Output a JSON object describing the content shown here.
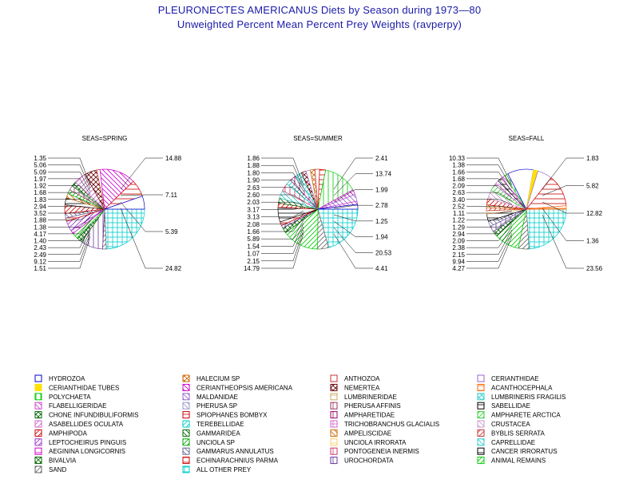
{
  "header": {
    "title_line1": "PLEURONECTES AMERICANUS Diets by Season during 1973—80",
    "title_line2": "Unweighted Percent Mean Percent Prey  Weights (ravperpy)"
  },
  "chart_data": [
    {
      "type": "pie",
      "title": "SEAS=SPRING",
      "slices": [
        {
          "category": "ALL OTHER PREY",
          "value": 24.82
        },
        {
          "category": "SAND",
          "value": 1.51
        },
        {
          "category": "UROCHORDATA",
          "value": 9.12
        },
        {
          "category": "BIVALVIA",
          "value": 2.49
        },
        {
          "category": "ANIMAL REMAINS",
          "value": 2.43
        },
        {
          "category": "AEGININA LONGICORNIS",
          "value": 1.4
        },
        {
          "category": "LEPTOCHEIRUS PINGUIS",
          "value": 4.17
        },
        {
          "category": "ECHINARACHNIUS PARMA",
          "value": 1.38
        },
        {
          "category": "GAMMARUS ANNULATUS",
          "value": 1.88
        },
        {
          "category": "AMPHIPODA",
          "value": 3.52
        },
        {
          "category": "CANCER IRRORATUS",
          "value": 2.94
        },
        {
          "category": "AMPELISCIDAE",
          "value": 1.83
        },
        {
          "category": "UNCIOLA SP",
          "value": 1.68
        },
        {
          "category": "PHERUSA AFFINIS",
          "value": 1.92
        },
        {
          "category": "CHONE INFUNDIBULIFORMIS",
          "value": 1.97
        },
        {
          "category": "ASABELLIDES OCULATA",
          "value": 5.09
        },
        {
          "category": "NEMERTEA",
          "value": 5.06
        },
        {
          "category": "ANTHOZOA",
          "value": 1.35
        },
        {
          "category": "CERIANTHEOPSIS AMERICANA",
          "value": 14.88
        },
        {
          "category": "SPIOPHANES BOMBYX",
          "value": 7.11
        },
        {
          "category": "HYDROZOA",
          "value": 5.39
        }
      ],
      "labels_left": [
        "1.35",
        "5.06",
        "5.09",
        "1.97",
        "1.92",
        "1.68",
        "1.83",
        "2.94",
        "3.52",
        "1.88",
        "1.38",
        "4.17",
        "1.40",
        "2.43",
        "2.49",
        "9.12",
        "1.51"
      ],
      "labels_right": [
        "14.88",
        "7.11",
        "5.39",
        "24.82"
      ]
    },
    {
      "type": "pie",
      "title": "SEAS=SUMMER",
      "slices": [
        {
          "category": "ALL OTHER PREY",
          "value": 20.53
        },
        {
          "category": "SAND",
          "value": 4.41
        },
        {
          "category": "ANIMAL REMAINS",
          "value": 14.79
        },
        {
          "category": "BIVALVIA",
          "value": 2.15
        },
        {
          "category": "UROCHORDATA",
          "value": 1.07
        },
        {
          "category": "ECHINARACHNIUS PARMA",
          "value": 1.54
        },
        {
          "category": "CANCER IRRORATUS",
          "value": 5.89
        },
        {
          "category": "AMPHIPODA",
          "value": 1.66
        },
        {
          "category": "GAMMARIDEA",
          "value": 2.08
        },
        {
          "category": "CAPRELLIDAE",
          "value": 3.13
        },
        {
          "category": "PONTOGENEIA INERMIS",
          "value": 3.17
        },
        {
          "category": "TEREBELLIDAE",
          "value": 2.03
        },
        {
          "category": "AMPHARETIDAE",
          "value": 2.6
        },
        {
          "category": "LUMBRINERIS FRAGILIS",
          "value": 2.63
        },
        {
          "category": "NEMERTEA",
          "value": 1.9
        },
        {
          "category": "CERIANTHIDAE",
          "value": 1.8
        },
        {
          "category": "HALECIUM SP",
          "value": 1.88
        },
        {
          "category": "ANTHOZOA",
          "value": 1.86
        },
        {
          "category": "SPIOPHANES BOMBYX",
          "value": 2.41
        },
        {
          "category": "POLYCHAETA",
          "value": 13.74
        },
        {
          "category": "CERIANTHEOPSIS AMERICANA",
          "value": 1.99
        },
        {
          "category": "MALDANIDAE",
          "value": 2.78
        },
        {
          "category": "FLABELLIGERIDAE",
          "value": 1.25
        },
        {
          "category": "HYDROZOA",
          "value": 1.94
        }
      ],
      "labels_left": [
        "1.86",
        "1.88",
        "1.80",
        "1.90",
        "2.63",
        "2.60",
        "2.03",
        "3.17",
        "3.13",
        "2.08",
        "1.66",
        "5.89",
        "1.54",
        "1.07",
        "2.15",
        "14.79"
      ],
      "labels_right": [
        "2.41",
        "13.74",
        "1.99",
        "2.78",
        "1.25",
        "1.94",
        "20.53",
        "4.41"
      ]
    },
    {
      "type": "pie",
      "title": "SEAS=FALL",
      "slices": [
        {
          "category": "ALL OTHER PREY",
          "value": 23.56
        },
        {
          "category": "SAND",
          "value": 4.27
        },
        {
          "category": "ANIMAL REMAINS",
          "value": 9.94
        },
        {
          "category": "BIVALVIA",
          "value": 2.15
        },
        {
          "category": "UROCHORDATA",
          "value": 2.38
        },
        {
          "category": "GAMMARUS ANNULATUS",
          "value": 2.09
        },
        {
          "category": "CANCER IRRORATUS",
          "value": 2.94
        },
        {
          "category": "UNCIOLA IRRORATA",
          "value": 1.29
        },
        {
          "category": "BYBLIS SERRATA",
          "value": 1.22
        },
        {
          "category": "AMPELISCIDAE",
          "value": 1.11
        },
        {
          "category": "AMPHIPODA",
          "value": 2.52
        },
        {
          "category": "CRUSTACEA",
          "value": 3.4
        },
        {
          "category": "AMPHARETE ARCTICA",
          "value": 2.63
        },
        {
          "category": "TRICHOBRANCHUS GLACIALIS",
          "value": 2.09
        },
        {
          "category": "SABELLIDAE",
          "value": 1.68
        },
        {
          "category": "FLABELLIGERIDAE",
          "value": 1.66
        },
        {
          "category": "POLYCHAETA",
          "value": 1.38
        },
        {
          "category": "HYDROZOA",
          "value": 10.33
        },
        {
          "category": "CERIANTHIDAE TUBES",
          "value": 1.83
        },
        {
          "category": "CERIANTHIDAE",
          "value": 5.82
        },
        {
          "category": "SPIOPHANES BOMBYX",
          "value": 12.82
        },
        {
          "category": "ACANTHOCEPHALA",
          "value": 1.36
        }
      ],
      "labels_left": [
        "10.33",
        "1.38",
        "1.66",
        "1.68",
        "2.09",
        "2.63",
        "3.40",
        "2.52",
        "1.11",
        "1.22",
        "1.29",
        "2.94",
        "2.09",
        "2.38",
        "2.15",
        "9.94",
        "4.27"
      ],
      "labels_right": [
        "1.83",
        "5.82",
        "12.82",
        "1.36",
        "23.56"
      ]
    }
  ],
  "legend": {
    "columns": [
      [
        {
          "label": "HYDROZOA",
          "color": "#0000cc",
          "pattern": "empty"
        },
        {
          "label": "CERIANTHIDAE TUBES",
          "color": "#ffe000",
          "pattern": "solid"
        },
        {
          "label": "POLYCHAETA",
          "color": "#00cc00",
          "pattern": "vlines"
        },
        {
          "label": "FLABELLIGERIDAE",
          "color": "#cc44cc",
          "pattern": "back"
        },
        {
          "label": "CHONE INFUNDIBULIFORMIS",
          "color": "#006600",
          "pattern": "xhatch"
        },
        {
          "label": "ASABELLIDES OCULATA",
          "color": "#cc66cc",
          "pattern": "fwd"
        },
        {
          "label": "AMPHIPODA",
          "color": "#cc0000",
          "pattern": "fwd"
        },
        {
          "label": "LEPTOCHEIRUS PINGUIS",
          "color": "#9933cc",
          "pattern": "fwd"
        },
        {
          "label": "AEGININA LONGICORNIS",
          "color": "#cc00cc",
          "pattern": "hlines"
        },
        {
          "label": "BIVALVIA",
          "color": "#006600",
          "pattern": "xhatch"
        },
        {
          "label": "SAND",
          "color": "#666666",
          "pattern": "fwd"
        }
      ],
      [
        {
          "label": "HALECIUM SP",
          "color": "#cc6600",
          "pattern": "xhatch"
        },
        {
          "label": "CERIANTHEOPSIS AMERICANA",
          "color": "#cc00cc",
          "pattern": "back"
        },
        {
          "label": "MALDANIDAE",
          "color": "#9966cc",
          "pattern": "back"
        },
        {
          "label": "PHERUSA SP",
          "color": "#9999cc",
          "pattern": "back"
        },
        {
          "label": "SPIOPHANES BOMBYX",
          "color": "#cc0000",
          "pattern": "hlines"
        },
        {
          "label": "TEREBELLIDAE",
          "color": "#00cccc",
          "pattern": "fwd"
        },
        {
          "label": "GAMMARIDEA",
          "color": "#006600",
          "pattern": "back"
        },
        {
          "label": "UNCIOLA SP",
          "color": "#00aa00",
          "pattern": "fwd"
        },
        {
          "label": "GAMMARUS ANNULATUS",
          "color": "#666699",
          "pattern": "back"
        },
        {
          "label": "ECHINARACHNIUS PARMA",
          "color": "#cc0000",
          "pattern": "hlines"
        },
        {
          "label": "ALL OTHER PREY",
          "color": "#00cccc",
          "pattern": "grid"
        }
      ],
      [
        {
          "label": "ANTHOZOA",
          "color": "#cc3333",
          "pattern": "empty"
        },
        {
          "label": "NEMERTEA",
          "color": "#660000",
          "pattern": "xhatch"
        },
        {
          "label": "LUMBRINERIDAE",
          "color": "#ccaa66",
          "pattern": "hlines"
        },
        {
          "label": "PHERUSA AFFINIS",
          "color": "#993366",
          "pattern": "vlines"
        },
        {
          "label": "AMPHARETIDAE",
          "color": "#990066",
          "pattern": "vlines"
        },
        {
          "label": "TRICHOBRANCHUS GLACIALIS",
          "color": "#cc66cc",
          "pattern": "grid"
        },
        {
          "label": "AMPELISCIDAE",
          "color": "#cc6600",
          "pattern": "back"
        },
        {
          "label": "UNCIOLA IRRORATA",
          "color": "#ffcc66",
          "pattern": "hlines"
        },
        {
          "label": "PONTOGENEIA INERMIS",
          "color": "#cc3366",
          "pattern": "vlines"
        },
        {
          "label": "UROCHORDATA",
          "color": "#663399",
          "pattern": "vlines"
        }
      ],
      [
        {
          "label": "CERIANTHIDAE",
          "color": "#9966cc",
          "pattern": "empty"
        },
        {
          "label": "ACANTHOCEPHALA",
          "color": "#ff6600",
          "pattern": "hlines"
        },
        {
          "label": "LUMBRINERIS FRAGILIS",
          "color": "#33cccc",
          "pattern": "xhatch"
        },
        {
          "label": "SABELLIDAE",
          "color": "#000000",
          "pattern": "hlines"
        },
        {
          "label": "AMPHARETE ARCTICA",
          "color": "#33cc33",
          "pattern": "fwd"
        },
        {
          "label": "CRUSTACEA",
          "color": "#cc99cc",
          "pattern": "back"
        },
        {
          "label": "BYBLIS SERRATA",
          "color": "#cc3333",
          "pattern": "fwd"
        },
        {
          "label": "CAPRELLIDAE",
          "color": "#33cccc",
          "pattern": "back"
        },
        {
          "label": "CANCER IRRORATUS",
          "color": "#000000",
          "pattern": "hlines"
        },
        {
          "label": "ANIMAL REMAINS",
          "color": "#00cc00",
          "pattern": "fwd"
        }
      ]
    ]
  }
}
